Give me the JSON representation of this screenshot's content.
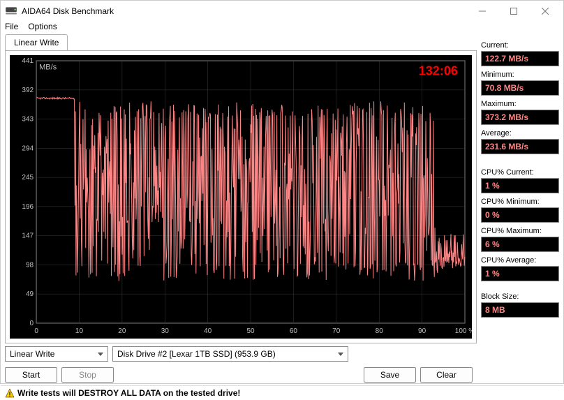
{
  "window": {
    "title": "AIDA64 Disk Benchmark"
  },
  "menu": {
    "file": "File",
    "options": "Options"
  },
  "tab": {
    "label": "Linear Write"
  },
  "chart": {
    "type": "line",
    "timer": "132:06",
    "ylabel": "MB/s",
    "xlabel_suffix": "%",
    "line_color": "#fd8585",
    "text_color": "#c0c0c0",
    "timer_color": "#ff0000",
    "grid_color": "#3a3a3a",
    "background_color": "#000000",
    "ylim": [
      0,
      441
    ],
    "xlim": [
      0,
      100
    ],
    "y_ticks": [
      0,
      49,
      98,
      147,
      196,
      245,
      294,
      343,
      392,
      441
    ],
    "x_ticks": [
      0,
      10,
      20,
      30,
      40,
      50,
      60,
      70,
      80,
      90,
      100
    ]
  },
  "stats": {
    "current_label": "Current:",
    "current_value": "122.7 MB/s",
    "minimum_label": "Minimum:",
    "minimum_value": "70.8 MB/s",
    "maximum_label": "Maximum:",
    "maximum_value": "373.2 MB/s",
    "average_label": "Average:",
    "average_value": "231.6 MB/s",
    "cpu_cur_label": "CPU% Current:",
    "cpu_cur_value": "1 %",
    "cpu_min_label": "CPU% Minimum:",
    "cpu_min_value": "0 %",
    "cpu_max_label": "CPU% Maximum:",
    "cpu_max_value": "6 %",
    "cpu_avg_label": "CPU% Average:",
    "cpu_avg_value": "1 %",
    "block_label": "Block Size:",
    "block_value": "8 MB"
  },
  "controls": {
    "test_select": "Linear Write",
    "drive_select": "Disk Drive #2  [Lexar 1TB SSD]  (953.9 GB)",
    "start": "Start",
    "stop": "Stop",
    "save": "Save",
    "clear": "Clear"
  },
  "warning": "Write tests will DESTROY ALL DATA on the tested drive!"
}
